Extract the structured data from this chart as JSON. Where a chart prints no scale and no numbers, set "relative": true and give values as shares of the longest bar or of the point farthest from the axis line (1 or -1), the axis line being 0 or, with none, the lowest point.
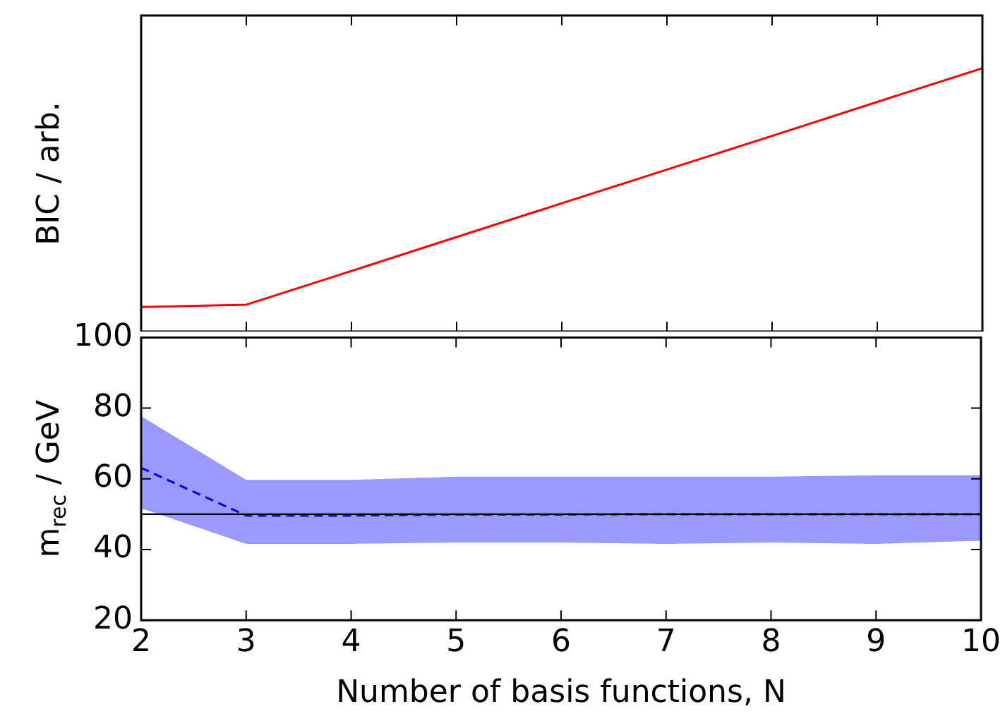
{
  "chart_data": [
    {
      "type": "line",
      "relative": true,
      "ylabel": "BIC / arb.",
      "categories": [
        null,
        null,
        null,
        null,
        null,
        null,
        null,
        null,
        null
      ],
      "grid": false,
      "legend": false,
      "series": [
        {
          "color": "#ff0000",
          "values": [
            0.093,
            0.102,
            0.23,
            0.359,
            0.487,
            0.615,
            0.743,
            0.872,
            1
          ]
        }
      ]
    },
    {
      "type": "line",
      "xlabel": "Number of basis functions, N",
      "ylabel": "m$_{rec}$ / GeV",
      "x": [
        2,
        3,
        4,
        5,
        6,
        7,
        8,
        9,
        10
      ],
      "xlim": [
        2,
        10
      ],
      "xticks": [
        2,
        3,
        4,
        5,
        6,
        7,
        8,
        9,
        10
      ],
      "ylim": [
        20,
        100
      ],
      "yticks": [
        20,
        40,
        60,
        80,
        100
      ],
      "grid": false,
      "legend": false,
      "ref_lines": [
        {
          "axis": "y",
          "value": 50,
          "color": "#000000",
          "line_style": "solid"
        }
      ],
      "series": [
        {
          "color": "#0000ff",
          "line_style": "dashed",
          "values": [
            63.1,
            49.6,
            49.6,
            49.9,
            49.9,
            50,
            50,
            50,
            50
          ],
          "lower": [
            51.7,
            41.6,
            41.6,
            42,
            42,
            41.6,
            42,
            41.6,
            42.5
          ],
          "upper": [
            77.7,
            59.7,
            59.7,
            60.6,
            60.6,
            60.6,
            60.6,
            61,
            61
          ]
        }
      ]
    }
  ]
}
